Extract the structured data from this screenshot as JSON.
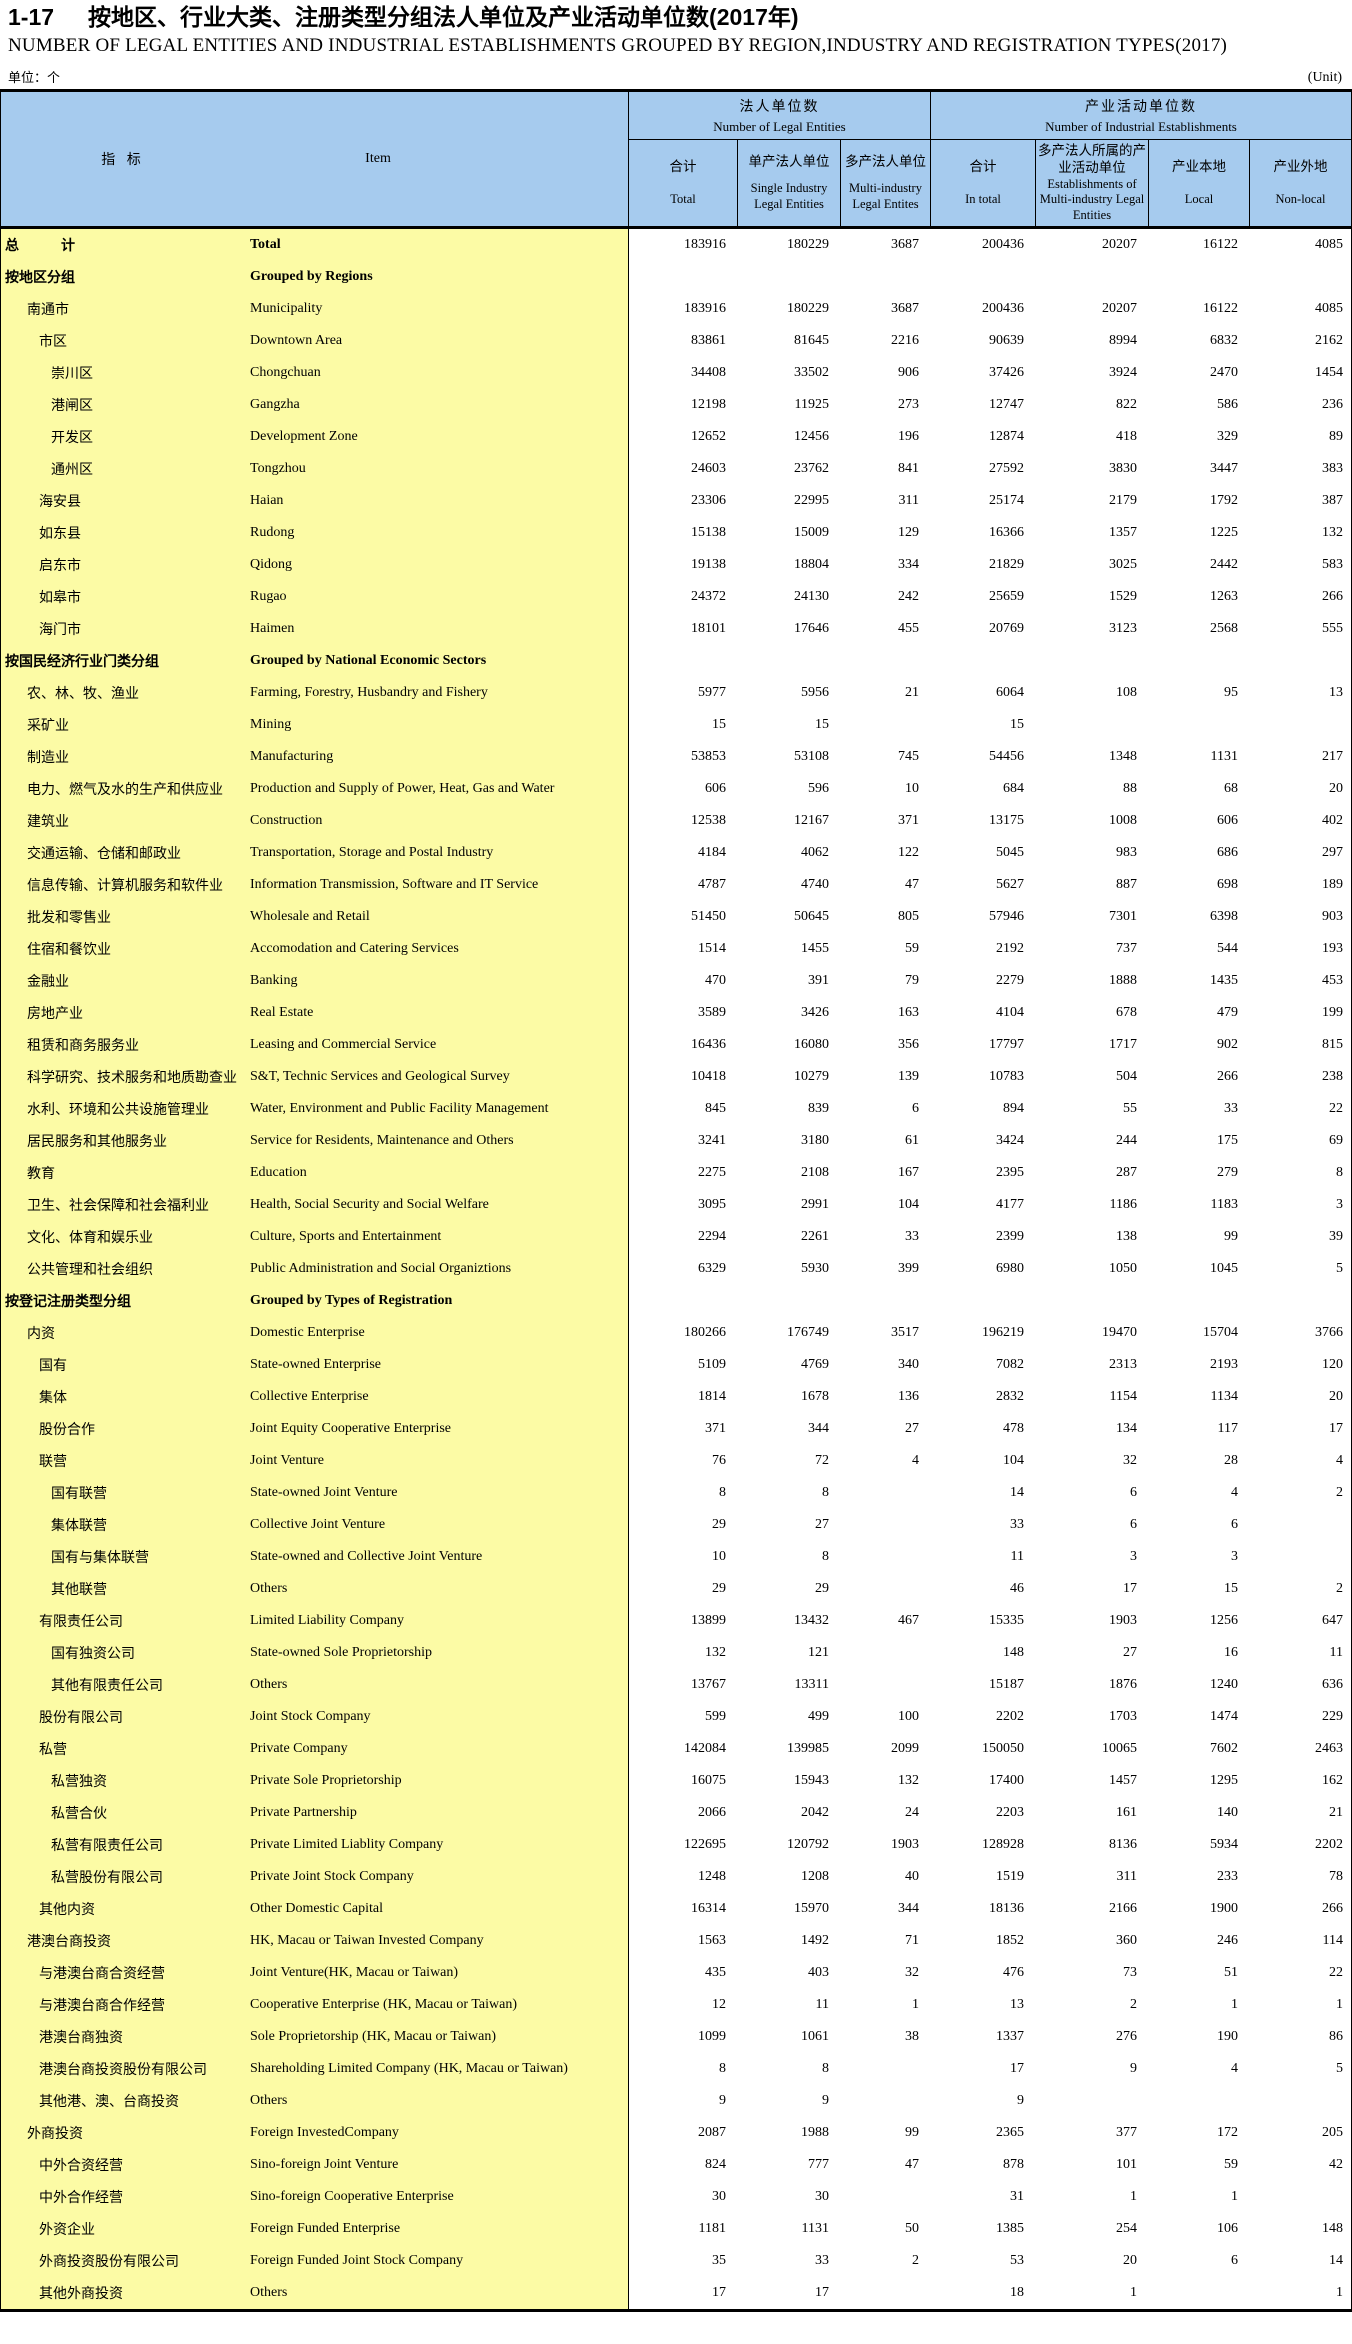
{
  "page": {
    "table_number": "1-17",
    "title_zh": "按地区、行业大类、注册类型分组法人单位及产业活动单位数(2017年)",
    "title_en": "NUMBER OF LEGAL ENTITIES AND INDUSTRIAL ESTABLISHMENTS GROUPED BY REGION,INDUSTRY AND REGISTRATION TYPES(2017)",
    "unit_zh": "单位：个",
    "unit_en": "(Unit)"
  },
  "colors": {
    "header_bg": "#a6cbee",
    "stub_bg": "#fcfba5",
    "border": "#000000"
  },
  "table": {
    "stub_header": {
      "zh": "指 标",
      "en": "Item"
    },
    "groups": [
      {
        "zh": "法人单位数",
        "en": "Number of Legal Entities",
        "columns": [
          {
            "zh": "合计",
            "en": "Total"
          },
          {
            "zh": "单产法人单位",
            "en": "Single Industry Legal Entities"
          },
          {
            "zh": "多产法人单位",
            "en": "Multi-industry Legal Entites"
          }
        ]
      },
      {
        "zh": "产业活动单位数",
        "en": "Number of Industrial Establishments",
        "columns": [
          {
            "zh": "合计",
            "en": "In total"
          },
          {
            "zh": "多产法人所属的产业活动单位",
            "en": "Establishments of Multi-industry Legal Entities"
          },
          {
            "zh": "产业本地",
            "en": "Local"
          },
          {
            "zh": "产业外地",
            "en": "Non-local"
          }
        ]
      }
    ],
    "rows": [
      {
        "zh": "总　　　计",
        "en": "Total",
        "indent": 0,
        "bold": true,
        "values": [
          "183916",
          "180229",
          "3687",
          "200436",
          "20207",
          "16122",
          "4085"
        ]
      },
      {
        "zh": "按地区分组",
        "en": "Grouped by Regions",
        "indent": 0,
        "bold": true,
        "values": [
          "",
          "",
          "",
          "",
          "",
          "",
          ""
        ]
      },
      {
        "zh": "南通市",
        "en": "Municipality",
        "indent": 1,
        "bold": false,
        "values": [
          "183916",
          "180229",
          "3687",
          "200436",
          "20207",
          "16122",
          "4085"
        ]
      },
      {
        "zh": "市区",
        "en": "Downtown Area",
        "indent": 2,
        "bold": false,
        "values": [
          "83861",
          "81645",
          "2216",
          "90639",
          "8994",
          "6832",
          "2162"
        ]
      },
      {
        "zh": "崇川区",
        "en": "Chongchuan",
        "indent": 3,
        "bold": false,
        "values": [
          "34408",
          "33502",
          "906",
          "37426",
          "3924",
          "2470",
          "1454"
        ]
      },
      {
        "zh": "港闸区",
        "en": "Gangzha",
        "indent": 3,
        "bold": false,
        "values": [
          "12198",
          "11925",
          "273",
          "12747",
          "822",
          "586",
          "236"
        ]
      },
      {
        "zh": "开发区",
        "en": "Development Zone",
        "indent": 3,
        "bold": false,
        "values": [
          "12652",
          "12456",
          "196",
          "12874",
          "418",
          "329",
          "89"
        ]
      },
      {
        "zh": "通州区",
        "en": "Tongzhou",
        "indent": 3,
        "bold": false,
        "values": [
          "24603",
          "23762",
          "841",
          "27592",
          "3830",
          "3447",
          "383"
        ]
      },
      {
        "zh": "海安县",
        "en": "Haian",
        "indent": 2,
        "bold": false,
        "values": [
          "23306",
          "22995",
          "311",
          "25174",
          "2179",
          "1792",
          "387"
        ]
      },
      {
        "zh": "如东县",
        "en": "Rudong",
        "indent": 2,
        "bold": false,
        "values": [
          "15138",
          "15009",
          "129",
          "16366",
          "1357",
          "1225",
          "132"
        ]
      },
      {
        "zh": "启东市",
        "en": "Qidong",
        "indent": 2,
        "bold": false,
        "values": [
          "19138",
          "18804",
          "334",
          "21829",
          "3025",
          "2442",
          "583"
        ]
      },
      {
        "zh": "如皋市",
        "en": "Rugao",
        "indent": 2,
        "bold": false,
        "values": [
          "24372",
          "24130",
          "242",
          "25659",
          "1529",
          "1263",
          "266"
        ]
      },
      {
        "zh": "海门市",
        "en": "Haimen",
        "indent": 2,
        "bold": false,
        "values": [
          "18101",
          "17646",
          "455",
          "20769",
          "3123",
          "2568",
          "555"
        ]
      },
      {
        "zh": "按国民经济行业门类分组",
        "en": "Grouped by National Economic Sectors",
        "indent": 0,
        "bold": true,
        "values": [
          "",
          "",
          "",
          "",
          "",
          "",
          ""
        ]
      },
      {
        "zh": "农、林、牧、渔业",
        "en": "Farming, Forestry, Husbandry and Fishery",
        "indent": 1,
        "bold": false,
        "values": [
          "5977",
          "5956",
          "21",
          "6064",
          "108",
          "95",
          "13"
        ]
      },
      {
        "zh": "采矿业",
        "en": "Mining",
        "indent": 1,
        "bold": false,
        "values": [
          "15",
          "15",
          "",
          "15",
          "",
          "",
          ""
        ]
      },
      {
        "zh": "制造业",
        "en": "Manufacturing",
        "indent": 1,
        "bold": false,
        "values": [
          "53853",
          "53108",
          "745",
          "54456",
          "1348",
          "1131",
          "217"
        ]
      },
      {
        "zh": "电力、燃气及水的生产和供应业",
        "en": "Production and Supply of Power, Heat, Gas and Water",
        "indent": 1,
        "bold": false,
        "values": [
          "606",
          "596",
          "10",
          "684",
          "88",
          "68",
          "20"
        ]
      },
      {
        "zh": "建筑业",
        "en": "Construction",
        "indent": 1,
        "bold": false,
        "values": [
          "12538",
          "12167",
          "371",
          "13175",
          "1008",
          "606",
          "402"
        ]
      },
      {
        "zh": "交通运输、仓储和邮政业",
        "en": "Transportation, Storage and Postal Industry",
        "indent": 1,
        "bold": false,
        "values": [
          "4184",
          "4062",
          "122",
          "5045",
          "983",
          "686",
          "297"
        ]
      },
      {
        "zh": "信息传输、计算机服务和软件业",
        "en": "Information Transmission, Software and IT Service",
        "indent": 1,
        "bold": false,
        "values": [
          "4787",
          "4740",
          "47",
          "5627",
          "887",
          "698",
          "189"
        ]
      },
      {
        "zh": "批发和零售业",
        "en": "Wholesale and Retail",
        "indent": 1,
        "bold": false,
        "values": [
          "51450",
          "50645",
          "805",
          "57946",
          "7301",
          "6398",
          "903"
        ]
      },
      {
        "zh": "住宿和餐饮业",
        "en": "Accomodation and Catering Services",
        "indent": 1,
        "bold": false,
        "values": [
          "1514",
          "1455",
          "59",
          "2192",
          "737",
          "544",
          "193"
        ]
      },
      {
        "zh": "金融业",
        "en": "Banking",
        "indent": 1,
        "bold": false,
        "values": [
          "470",
          "391",
          "79",
          "2279",
          "1888",
          "1435",
          "453"
        ]
      },
      {
        "zh": "房地产业",
        "en": "Real Estate",
        "indent": 1,
        "bold": false,
        "values": [
          "3589",
          "3426",
          "163",
          "4104",
          "678",
          "479",
          "199"
        ]
      },
      {
        "zh": "租赁和商务服务业",
        "en": "Leasing and Commercial Service",
        "indent": 1,
        "bold": false,
        "values": [
          "16436",
          "16080",
          "356",
          "17797",
          "1717",
          "902",
          "815"
        ]
      },
      {
        "zh": "科学研究、技术服务和地质勘查业",
        "en": "S&T, Technic Services and Geological Survey",
        "indent": 1,
        "bold": false,
        "values": [
          "10418",
          "10279",
          "139",
          "10783",
          "504",
          "266",
          "238"
        ]
      },
      {
        "zh": "水利、环境和公共设施管理业",
        "en": "Water, Environment and Public Facility Management",
        "indent": 1,
        "bold": false,
        "values": [
          "845",
          "839",
          "6",
          "894",
          "55",
          "33",
          "22"
        ]
      },
      {
        "zh": "居民服务和其他服务业",
        "en": "Service for Residents, Maintenance and Others",
        "indent": 1,
        "bold": false,
        "values": [
          "3241",
          "3180",
          "61",
          "3424",
          "244",
          "175",
          "69"
        ]
      },
      {
        "zh": "教育",
        "en": "Education",
        "indent": 1,
        "bold": false,
        "values": [
          "2275",
          "2108",
          "167",
          "2395",
          "287",
          "279",
          "8"
        ]
      },
      {
        "zh": "卫生、社会保障和社会福利业",
        "en": "Health, Social Security and Social Welfare",
        "indent": 1,
        "bold": false,
        "values": [
          "3095",
          "2991",
          "104",
          "4177",
          "1186",
          "1183",
          "3"
        ]
      },
      {
        "zh": "文化、体育和娱乐业",
        "en": "Culture, Sports and Entertainment",
        "indent": 1,
        "bold": false,
        "values": [
          "2294",
          "2261",
          "33",
          "2399",
          "138",
          "99",
          "39"
        ]
      },
      {
        "zh": "公共管理和社会组织",
        "en": "Public Administration and Social Organiztions",
        "indent": 1,
        "bold": false,
        "values": [
          "6329",
          "5930",
          "399",
          "6980",
          "1050",
          "1045",
          "5"
        ]
      },
      {
        "zh": "按登记注册类型分组",
        "en": "Grouped by Types of Registration",
        "indent": 0,
        "bold": true,
        "values": [
          "",
          "",
          "",
          "",
          "",
          "",
          ""
        ]
      },
      {
        "zh": "内资",
        "en": "Domestic Enterprise",
        "indent": 1,
        "bold": false,
        "values": [
          "180266",
          "176749",
          "3517",
          "196219",
          "19470",
          "15704",
          "3766"
        ]
      },
      {
        "zh": "国有",
        "en": "State-owned Enterprise",
        "indent": 2,
        "bold": false,
        "values": [
          "5109",
          "4769",
          "340",
          "7082",
          "2313",
          "2193",
          "120"
        ]
      },
      {
        "zh": "集体",
        "en": "Collective Enterprise",
        "indent": 2,
        "bold": false,
        "values": [
          "1814",
          "1678",
          "136",
          "2832",
          "1154",
          "1134",
          "20"
        ]
      },
      {
        "zh": "股份合作",
        "en": "Joint Equity Cooperative Enterprise",
        "indent": 2,
        "bold": false,
        "values": [
          "371",
          "344",
          "27",
          "478",
          "134",
          "117",
          "17"
        ]
      },
      {
        "zh": "联营",
        "en": "Joint Venture",
        "indent": 2,
        "bold": false,
        "values": [
          "76",
          "72",
          "4",
          "104",
          "32",
          "28",
          "4"
        ]
      },
      {
        "zh": "国有联营",
        "en": "State-owned Joint Venture",
        "indent": 3,
        "bold": false,
        "values": [
          "8",
          "8",
          "",
          "14",
          "6",
          "4",
          "2"
        ]
      },
      {
        "zh": "集体联营",
        "en": "Collective Joint Venture",
        "indent": 3,
        "bold": false,
        "values": [
          "29",
          "27",
          "",
          "33",
          "6",
          "6",
          ""
        ]
      },
      {
        "zh": "国有与集体联营",
        "en": "State-owned and Collective Joint Venture",
        "indent": 3,
        "bold": false,
        "values": [
          "10",
          "8",
          "",
          "11",
          "3",
          "3",
          ""
        ]
      },
      {
        "zh": "其他联营",
        "en": "Others",
        "indent": 3,
        "bold": false,
        "values": [
          "29",
          "29",
          "",
          "46",
          "17",
          "15",
          "2"
        ]
      },
      {
        "zh": "有限责任公司",
        "en": "Limited Liability Company",
        "indent": 2,
        "bold": false,
        "values": [
          "13899",
          "13432",
          "467",
          "15335",
          "1903",
          "1256",
          "647"
        ]
      },
      {
        "zh": "国有独资公司",
        "en": "State-owned Sole Proprietorship",
        "indent": 3,
        "bold": false,
        "values": [
          "132",
          "121",
          "",
          "148",
          "27",
          "16",
          "11"
        ]
      },
      {
        "zh": "其他有限责任公司",
        "en": "Others",
        "indent": 3,
        "bold": false,
        "values": [
          "13767",
          "13311",
          "",
          "15187",
          "1876",
          "1240",
          "636"
        ]
      },
      {
        "zh": "股份有限公司",
        "en": "Joint Stock Company",
        "indent": 2,
        "bold": false,
        "values": [
          "599",
          "499",
          "100",
          "2202",
          "1703",
          "1474",
          "229"
        ]
      },
      {
        "zh": "私营",
        "en": "Private Company",
        "indent": 2,
        "bold": false,
        "values": [
          "142084",
          "139985",
          "2099",
          "150050",
          "10065",
          "7602",
          "2463"
        ]
      },
      {
        "zh": "私营独资",
        "en": "Private Sole Proprietorship",
        "indent": 3,
        "bold": false,
        "values": [
          "16075",
          "15943",
          "132",
          "17400",
          "1457",
          "1295",
          "162"
        ]
      },
      {
        "zh": "私营合伙",
        "en": "Private Partnership",
        "indent": 3,
        "bold": false,
        "values": [
          "2066",
          "2042",
          "24",
          "2203",
          "161",
          "140",
          "21"
        ]
      },
      {
        "zh": "私营有限责任公司",
        "en": "Private Limited Liablity Company",
        "indent": 3,
        "bold": false,
        "values": [
          "122695",
          "120792",
          "1903",
          "128928",
          "8136",
          "5934",
          "2202"
        ]
      },
      {
        "zh": "私营股份有限公司",
        "en": "Private Joint Stock Company",
        "indent": 3,
        "bold": false,
        "values": [
          "1248",
          "1208",
          "40",
          "1519",
          "311",
          "233",
          "78"
        ]
      },
      {
        "zh": "其他内资",
        "en": "Other Domestic Capital",
        "indent": 2,
        "bold": false,
        "values": [
          "16314",
          "15970",
          "344",
          "18136",
          "2166",
          "1900",
          "266"
        ]
      },
      {
        "zh": "港澳台商投资",
        "en": "HK, Macau or Taiwan Invested Company",
        "indent": 1,
        "bold": false,
        "values": [
          "1563",
          "1492",
          "71",
          "1852",
          "360",
          "246",
          "114"
        ]
      },
      {
        "zh": "与港澳台商合资经营",
        "en": "Joint Venture(HK, Macau or Taiwan)",
        "indent": 2,
        "bold": false,
        "values": [
          "435",
          "403",
          "32",
          "476",
          "73",
          "51",
          "22"
        ]
      },
      {
        "zh": "与港澳台商合作经营",
        "en": "Cooperative Enterprise (HK, Macau or Taiwan)",
        "indent": 2,
        "bold": false,
        "values": [
          "12",
          "11",
          "1",
          "13",
          "2",
          "1",
          "1"
        ]
      },
      {
        "zh": "港澳台商独资",
        "en": "Sole Proprietorship (HK, Macau or Taiwan)",
        "indent": 2,
        "bold": false,
        "values": [
          "1099",
          "1061",
          "38",
          "1337",
          "276",
          "190",
          "86"
        ]
      },
      {
        "zh": "港澳台商投资股份有限公司",
        "en": "Shareholding Limited Company (HK, Macau or Taiwan)",
        "indent": 2,
        "bold": false,
        "values": [
          "8",
          "8",
          "",
          "17",
          "9",
          "4",
          "5"
        ]
      },
      {
        "zh": "其他港、澳、台商投资",
        "en": "Others",
        "indent": 2,
        "bold": false,
        "values": [
          "9",
          "9",
          "",
          "9",
          "",
          "",
          ""
        ]
      },
      {
        "zh": "外商投资",
        "en": "Foreign InvestedCompany",
        "indent": 1,
        "bold": false,
        "values": [
          "2087",
          "1988",
          "99",
          "2365",
          "377",
          "172",
          "205"
        ]
      },
      {
        "zh": "中外合资经营",
        "en": "Sino-foreign Joint Venture",
        "indent": 2,
        "bold": false,
        "values": [
          "824",
          "777",
          "47",
          "878",
          "101",
          "59",
          "42"
        ]
      },
      {
        "zh": "中外合作经营",
        "en": "Sino-foreign Cooperative Enterprise",
        "indent": 2,
        "bold": false,
        "values": [
          "30",
          "30",
          "",
          "31",
          "1",
          "1",
          ""
        ]
      },
      {
        "zh": "外资企业",
        "en": "Foreign Funded Enterprise",
        "indent": 2,
        "bold": false,
        "values": [
          "1181",
          "1131",
          "50",
          "1385",
          "254",
          "106",
          "148"
        ]
      },
      {
        "zh": "外商投资股份有限公司",
        "en": "Foreign Funded Joint Stock Company",
        "indent": 2,
        "bold": false,
        "values": [
          "35",
          "33",
          "2",
          "53",
          "20",
          "6",
          "14"
        ]
      },
      {
        "zh": "其他外商投资",
        "en": "Others",
        "indent": 2,
        "bold": false,
        "values": [
          "17",
          "17",
          "",
          "18",
          "1",
          "",
          "1"
        ]
      }
    ]
  }
}
